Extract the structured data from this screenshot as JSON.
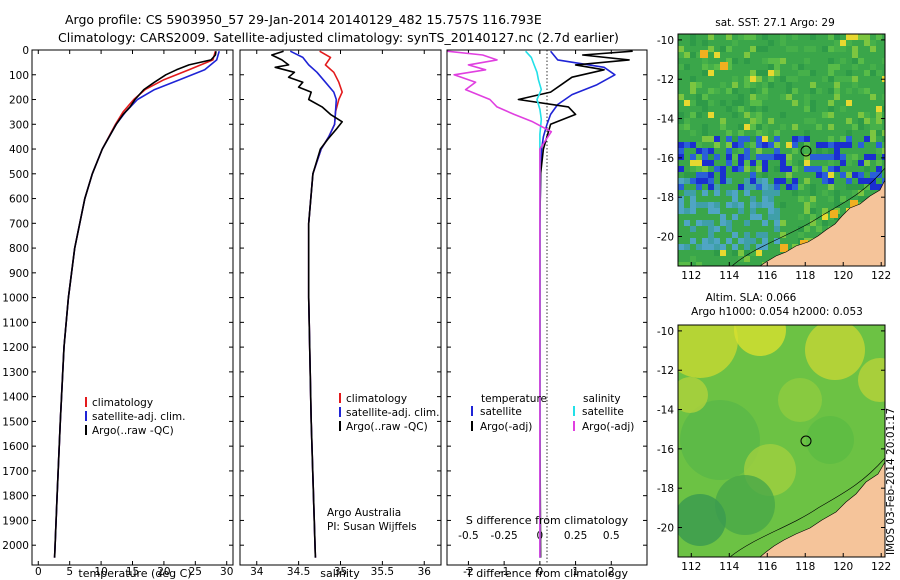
{
  "header": {
    "line1": "Argo profile: CS 5903950_57 29-Jan-2014 20140129_482 15.757S 116.793E",
    "line2": "Climatology: CARS2009. Satellite-adjusted climatology: synTS_20140127.nc (2.7d earlier)"
  },
  "colors": {
    "climatology": "#e31a1c",
    "satellite": "#1f24d6",
    "argo": "#000000",
    "cyan": "#22e0e8",
    "magenta": "#e040e0"
  },
  "chart_data": [
    {
      "type": "line",
      "id": "temperature",
      "xlabel": "temperature (deg C)",
      "ylabel": "",
      "xlim": [
        -1,
        31
      ],
      "ylim": [
        2080,
        0
      ],
      "xticks": [
        "0",
        "5",
        "10",
        "15",
        "20",
        "25",
        "30"
      ],
      "yticks": [
        "0",
        "100",
        "200",
        "300",
        "400",
        "500",
        "600",
        "700",
        "800",
        "900",
        "1000",
        "1100",
        "1200",
        "1300",
        "1400",
        "1500",
        "1600",
        "1700",
        "1800",
        "1900",
        "2000"
      ],
      "legend": [
        "climatology",
        "satellite-adj. clim.",
        "Argo(..raw -QC)"
      ],
      "series": [
        {
          "name": "climatology",
          "depth": [
            5,
            40,
            80,
            120,
            160,
            200,
            250,
            300,
            400,
            500,
            600,
            800,
            1000,
            1200,
            1500,
            1800,
            2050
          ],
          "values": [
            28.2,
            27.8,
            24,
            20,
            17,
            15.2,
            13.5,
            12.3,
            10.2,
            8.6,
            7.4,
            5.8,
            4.8,
            4.1,
            3.5,
            3.0,
            2.6
          ]
        },
        {
          "name": "satellite-adj. clim.",
          "depth": [
            5,
            40,
            80,
            120,
            160,
            200,
            250,
            300,
            400,
            500,
            600,
            800,
            1000,
            1200,
            1500,
            1800,
            2050
          ],
          "values": [
            28.8,
            28.4,
            26.5,
            22.5,
            18.5,
            15.8,
            13.9,
            12.4,
            10.2,
            8.6,
            7.4,
            5.8,
            4.8,
            4.1,
            3.5,
            3.0,
            2.6
          ]
        },
        {
          "name": "Argo(..raw -QC)",
          "depth": [
            5,
            20,
            40,
            60,
            80,
            100,
            130,
            160,
            200,
            230,
            260,
            300,
            400,
            500,
            600,
            800,
            1000,
            1200,
            1500,
            1800,
            2050
          ],
          "values": [
            28.3,
            28.2,
            27.5,
            24,
            22,
            20.3,
            18.5,
            16.8,
            15.4,
            14.6,
            13.5,
            12.4,
            10.2,
            8.6,
            7.4,
            5.8,
            4.8,
            4.1,
            3.5,
            3.0,
            2.6
          ]
        }
      ]
    },
    {
      "type": "line",
      "id": "salinity",
      "xlabel": "salinity",
      "xlim": [
        33.8,
        36.2
      ],
      "ylim": [
        2080,
        0
      ],
      "xticks": [
        "34",
        "34.5",
        "35",
        "35.5",
        "36"
      ],
      "legend": [
        "climatology",
        "satellite-adj. clim.",
        "Argo(..raw -QC)"
      ],
      "series": [
        {
          "name": "climatology",
          "depth": [
            5,
            30,
            60,
            90,
            130,
            170,
            200,
            250,
            300,
            350,
            400,
            500,
            700,
            1000,
            1500,
            2050
          ],
          "values": [
            34.75,
            34.88,
            34.82,
            34.92,
            34.98,
            35.02,
            34.98,
            34.94,
            34.93,
            34.86,
            34.77,
            34.67,
            34.62,
            34.62,
            34.65,
            34.7
          ]
        },
        {
          "name": "satellite-adj. clim.",
          "depth": [
            5,
            30,
            60,
            90,
            130,
            170,
            200,
            250,
            300,
            350,
            400,
            500,
            700,
            1000,
            1500,
            2050
          ],
          "values": [
            34.4,
            34.55,
            34.62,
            34.72,
            34.82,
            34.92,
            34.95,
            34.94,
            34.93,
            34.86,
            34.77,
            34.67,
            34.62,
            34.62,
            34.65,
            34.7
          ]
        },
        {
          "name": "Argo(..raw -QC)",
          "depth": [
            5,
            20,
            40,
            60,
            70,
            90,
            110,
            130,
            150,
            170,
            200,
            230,
            260,
            290,
            320,
            360,
            400,
            500,
            700,
            1000,
            1500,
            2050
          ],
          "values": [
            34.32,
            34.18,
            34.3,
            34.38,
            34.22,
            34.45,
            34.38,
            34.55,
            34.5,
            34.65,
            34.62,
            34.78,
            34.88,
            35.02,
            34.95,
            34.85,
            34.76,
            34.67,
            34.62,
            34.62,
            34.65,
            34.7
          ]
        }
      ],
      "annotation": [
        "Argo Australia",
        "PI: Susan Wijffels"
      ]
    },
    {
      "type": "line",
      "id": "difference",
      "xlabel": "T difference from climatology",
      "xlabel_top": "S difference from climatology",
      "xlim": [
        -2.6,
        3.0
      ],
      "ylim": [
        2080,
        0
      ],
      "xticks": [
        "-2",
        "-1",
        "0",
        "1",
        "2"
      ],
      "xticks_top": [
        "-0.5",
        "-0.25",
        "0",
        "0.25",
        "0.5"
      ],
      "legend": {
        "temperature_header": "temperature",
        "salinity_header": "salinity",
        "items": [
          "satellite",
          "Argo(-adj)",
          "satellite",
          "Argo(-adj)"
        ]
      },
      "series": [
        {
          "name": "T satellite",
          "depth": [
            5,
            40,
            70,
            100,
            140,
            180,
            220,
            260,
            300,
            350,
            400,
            500,
            700,
            1000,
            1500,
            2050
          ],
          "values": [
            0.3,
            0.5,
            1.8,
            2.1,
            1.6,
            0.9,
            0.5,
            0.3,
            0.2,
            0.1,
            0.05,
            0.02,
            0,
            0,
            0,
            0
          ]
        },
        {
          "name": "T Argo(-adj)",
          "depth": [
            5,
            20,
            40,
            60,
            80,
            110,
            140,
            170,
            200,
            230,
            260,
            300,
            400,
            500,
            700,
            1000,
            1500,
            2050
          ],
          "values": [
            2.6,
            1.2,
            2.5,
            1.0,
            1.8,
            0.9,
            0.6,
            0.3,
            -0.6,
            0.8,
            1.0,
            0.3,
            0.1,
            0.02,
            0,
            0,
            0,
            0.02
          ]
        },
        {
          "name": "S satellite",
          "depth": [
            5,
            30,
            60,
            90,
            120,
            160,
            200,
            240,
            280,
            340,
            400,
            600,
            1000,
            2050
          ],
          "values": [
            -0.1,
            -0.06,
            -0.04,
            -0.02,
            -0.01,
            0.01,
            -0.02,
            0.0,
            0.01,
            0.0,
            0.0,
            0,
            0,
            0
          ]
        },
        {
          "name": "S Argo(-adj)",
          "depth": [
            5,
            20,
            40,
            60,
            80,
            100,
            130,
            160,
            200,
            230,
            260,
            290,
            330,
            400,
            600,
            1000,
            2050
          ],
          "values": [
            -0.65,
            -0.4,
            -0.3,
            -0.5,
            -0.38,
            -0.6,
            -0.45,
            -0.52,
            -0.35,
            -0.3,
            -0.18,
            -0.05,
            0.08,
            0.0,
            0,
            0,
            0
          ]
        }
      ]
    }
  ],
  "maps": {
    "sst": {
      "title": "sat. SST: 27.1  Argo: 29",
      "xticks": [
        "112",
        "114",
        "116",
        "118",
        "120",
        "122"
      ],
      "yticks": [
        "-10",
        "-12",
        "-14",
        "-16",
        "-18",
        "-20"
      ]
    },
    "sla": {
      "title1": "Altim. SLA: 0.066",
      "title2": "Argo h1000: 0.054 h2000: 0.053",
      "xticks": [
        "112",
        "114",
        "116",
        "118",
        "120",
        "122"
      ],
      "yticks": [
        "-10",
        "-12",
        "-14",
        "-16",
        "-18",
        "-20"
      ]
    },
    "credit": "IMOS 03-Feb-2014 20:01:17"
  }
}
